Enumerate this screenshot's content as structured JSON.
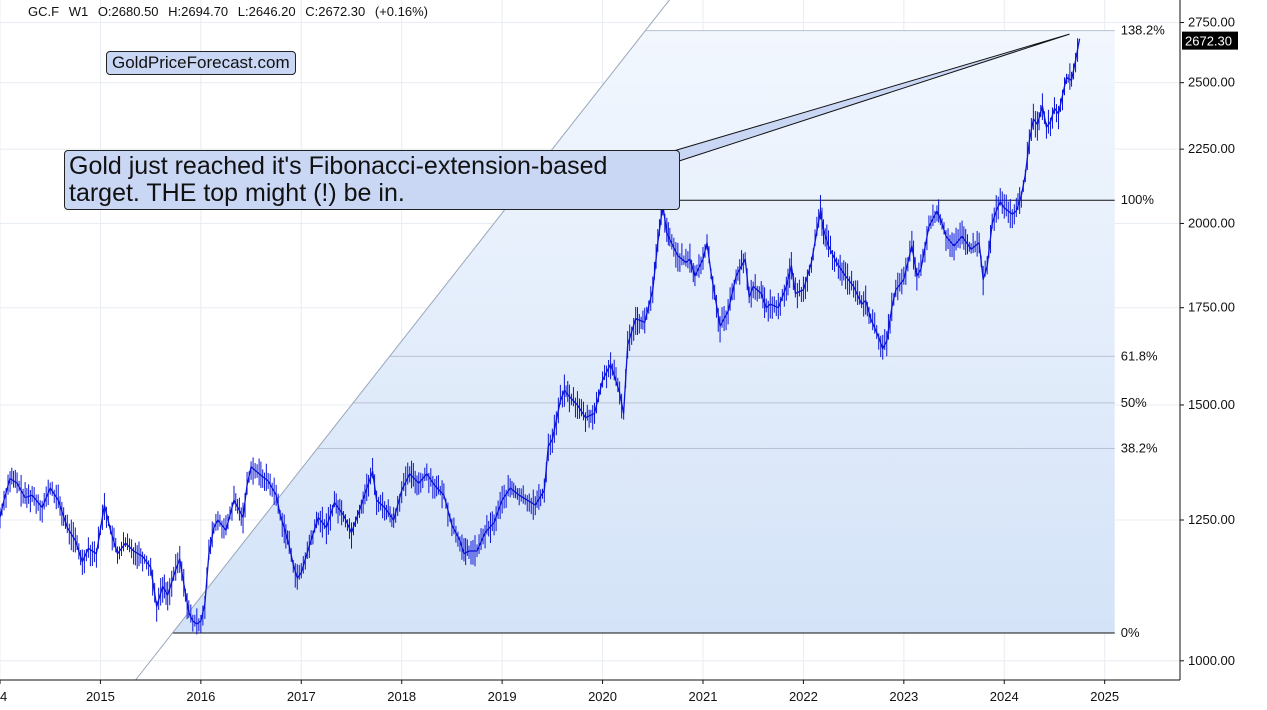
{
  "header": {
    "symbol": "GC.F",
    "interval": "W1",
    "open": "O:2680.50",
    "high": "H:2694.70",
    "low": "L:2646.20",
    "close": "C:2672.30",
    "change": "(+0.16%)"
  },
  "brand": "GoldPriceForecast.com",
  "annotation": "Gold just reached it's Fibonacci-extension-based target. THE top might (!) be in.",
  "colors": {
    "price": "#0a14d8",
    "fill_top": "#f2f7fe",
    "fill_bottom": "#d4e3f8",
    "level_line": "#b8c2d3",
    "grid": "#e8ecf3",
    "price_tag_bg": "#000000",
    "callout_bg": "#c9d7f5"
  },
  "chart_data": {
    "type": "line",
    "title": "",
    "xlabel": "",
    "ylabel": "",
    "scale": "log",
    "ylim": [
      970,
      2850
    ],
    "xlim": [
      2014.0,
      2025.75
    ],
    "x_ticks": [
      "4",
      "2015",
      "2016",
      "2017",
      "2018",
      "2019",
      "2020",
      "2021",
      "2022",
      "2023",
      "2024",
      "2025"
    ],
    "y_ticks": [
      "2750.00",
      "2500.00",
      "2250.00",
      "2000.00",
      "1750.00",
      "1500.00",
      "1250.00",
      "1000.00"
    ],
    "last_price_label": "2672.30",
    "series": [
      {
        "points": [
          [
            2014.0,
            1255
          ],
          [
            2014.04,
            1290
          ],
          [
            2014.1,
            1335
          ],
          [
            2014.17,
            1325
          ],
          [
            2014.25,
            1295
          ],
          [
            2014.32,
            1300
          ],
          [
            2014.42,
            1275
          ],
          [
            2014.5,
            1315
          ],
          [
            2014.58,
            1290
          ],
          [
            2014.67,
            1235
          ],
          [
            2014.75,
            1210
          ],
          [
            2014.82,
            1170
          ],
          [
            2014.88,
            1195
          ],
          [
            2014.96,
            1185
          ],
          [
            2015.04,
            1280
          ],
          [
            2015.1,
            1230
          ],
          [
            2015.17,
            1185
          ],
          [
            2015.25,
            1205
          ],
          [
            2015.33,
            1190
          ],
          [
            2015.42,
            1180
          ],
          [
            2015.5,
            1160
          ],
          [
            2015.56,
            1090
          ],
          [
            2015.62,
            1125
          ],
          [
            2015.67,
            1110
          ],
          [
            2015.75,
            1155
          ],
          [
            2015.79,
            1175
          ],
          [
            2015.83,
            1130
          ],
          [
            2015.88,
            1080
          ],
          [
            2015.92,
            1065
          ],
          [
            2015.96,
            1060
          ],
          [
            2016.0,
            1065
          ],
          [
            2016.04,
            1095
          ],
          [
            2016.08,
            1185
          ],
          [
            2016.13,
            1235
          ],
          [
            2016.17,
            1250
          ],
          [
            2016.25,
            1230
          ],
          [
            2016.33,
            1290
          ],
          [
            2016.42,
            1255
          ],
          [
            2016.46,
            1320
          ],
          [
            2016.5,
            1360
          ],
          [
            2016.58,
            1345
          ],
          [
            2016.67,
            1330
          ],
          [
            2016.75,
            1300
          ],
          [
            2016.79,
            1260
          ],
          [
            2016.83,
            1235
          ],
          [
            2016.88,
            1200
          ],
          [
            2016.92,
            1165
          ],
          [
            2016.96,
            1140
          ],
          [
            2017.0,
            1150
          ],
          [
            2017.08,
            1200
          ],
          [
            2017.17,
            1255
          ],
          [
            2017.25,
            1235
          ],
          [
            2017.33,
            1285
          ],
          [
            2017.42,
            1260
          ],
          [
            2017.5,
            1225
          ],
          [
            2017.58,
            1270
          ],
          [
            2017.67,
            1325
          ],
          [
            2017.71,
            1350
          ],
          [
            2017.75,
            1290
          ],
          [
            2017.83,
            1275
          ],
          [
            2017.92,
            1250
          ],
          [
            2018.0,
            1310
          ],
          [
            2018.08,
            1345
          ],
          [
            2018.17,
            1325
          ],
          [
            2018.25,
            1345
          ],
          [
            2018.33,
            1320
          ],
          [
            2018.42,
            1300
          ],
          [
            2018.46,
            1270
          ],
          [
            2018.5,
            1240
          ],
          [
            2018.58,
            1210
          ],
          [
            2018.62,
            1185
          ],
          [
            2018.67,
            1190
          ],
          [
            2018.75,
            1190
          ],
          [
            2018.83,
            1225
          ],
          [
            2018.92,
            1245
          ],
          [
            2019.0,
            1290
          ],
          [
            2019.08,
            1315
          ],
          [
            2019.17,
            1300
          ],
          [
            2019.25,
            1290
          ],
          [
            2019.33,
            1280
          ],
          [
            2019.42,
            1310
          ],
          [
            2019.46,
            1405
          ],
          [
            2019.5,
            1420
          ],
          [
            2019.58,
            1510
          ],
          [
            2019.62,
            1535
          ],
          [
            2019.67,
            1520
          ],
          [
            2019.75,
            1500
          ],
          [
            2019.83,
            1470
          ],
          [
            2019.92,
            1480
          ],
          [
            2020.0,
            1560
          ],
          [
            2020.08,
            1600
          ],
          [
            2020.17,
            1530
          ],
          [
            2020.21,
            1480
          ],
          [
            2020.25,
            1650
          ],
          [
            2020.33,
            1720
          ],
          [
            2020.42,
            1710
          ],
          [
            2020.5,
            1800
          ],
          [
            2020.55,
            1940
          ],
          [
            2020.6,
            2060
          ],
          [
            2020.64,
            1970
          ],
          [
            2020.67,
            1950
          ],
          [
            2020.75,
            1900
          ],
          [
            2020.83,
            1880
          ],
          [
            2020.87,
            1890
          ],
          [
            2020.92,
            1840
          ],
          [
            2021.0,
            1890
          ],
          [
            2021.04,
            1940
          ],
          [
            2021.08,
            1850
          ],
          [
            2021.17,
            1700
          ],
          [
            2021.25,
            1740
          ],
          [
            2021.33,
            1840
          ],
          [
            2021.42,
            1890
          ],
          [
            2021.46,
            1780
          ],
          [
            2021.5,
            1810
          ],
          [
            2021.58,
            1790
          ],
          [
            2021.63,
            1750
          ],
          [
            2021.67,
            1760
          ],
          [
            2021.75,
            1750
          ],
          [
            2021.83,
            1810
          ],
          [
            2021.88,
            1870
          ],
          [
            2021.92,
            1790
          ],
          [
            2022.0,
            1800
          ],
          [
            2022.08,
            1880
          ],
          [
            2022.17,
            2040
          ],
          [
            2022.2,
            1980
          ],
          [
            2022.25,
            1930
          ],
          [
            2022.33,
            1880
          ],
          [
            2022.42,
            1840
          ],
          [
            2022.5,
            1810
          ],
          [
            2022.58,
            1760
          ],
          [
            2022.62,
            1770
          ],
          [
            2022.67,
            1720
          ],
          [
            2022.75,
            1670
          ],
          [
            2022.79,
            1640
          ],
          [
            2022.83,
            1660
          ],
          [
            2022.88,
            1750
          ],
          [
            2022.92,
            1800
          ],
          [
            2023.0,
            1830
          ],
          [
            2023.08,
            1930
          ],
          [
            2023.13,
            1840
          ],
          [
            2023.17,
            1860
          ],
          [
            2023.25,
            1990
          ],
          [
            2023.33,
            2040
          ],
          [
            2023.38,
            2000
          ],
          [
            2023.42,
            1960
          ],
          [
            2023.5,
            1930
          ],
          [
            2023.58,
            1960
          ],
          [
            2023.67,
            1920
          ],
          [
            2023.75,
            1940
          ],
          [
            2023.79,
            1830
          ],
          [
            2023.83,
            1870
          ],
          [
            2023.88,
            2000
          ],
          [
            2023.92,
            2040
          ],
          [
            2023.96,
            2070
          ],
          [
            2024.0,
            2050
          ],
          [
            2024.08,
            2030
          ],
          [
            2024.12,
            2040
          ],
          [
            2024.17,
            2090
          ],
          [
            2024.21,
            2160
          ],
          [
            2024.25,
            2280
          ],
          [
            2024.29,
            2360
          ],
          [
            2024.33,
            2340
          ],
          [
            2024.38,
            2410
          ],
          [
            2024.42,
            2330
          ],
          [
            2024.46,
            2350
          ],
          [
            2024.5,
            2400
          ],
          [
            2024.54,
            2380
          ],
          [
            2024.58,
            2450
          ],
          [
            2024.62,
            2520
          ],
          [
            2024.67,
            2510
          ],
          [
            2024.71,
            2590
          ],
          [
            2024.75,
            2680
          ]
        ]
      }
    ],
    "fibonacci": {
      "base_low": 1045,
      "high": 2075,
      "levels": [
        {
          "label": "138.2%",
          "value": 2715
        },
        {
          "label": "100%",
          "value": 2075
        },
        {
          "label": "61.8%",
          "value": 1620
        },
        {
          "label": "50%",
          "value": 1505
        },
        {
          "label": "38.2%",
          "value": 1400
        },
        {
          "label": "0%",
          "value": 1045
        }
      ]
    },
    "trendline": {
      "from": [
        2015.35,
        970
      ],
      "to": [
        2020.7,
        2870
      ]
    },
    "callout_target": [
      2024.65,
      2700
    ]
  }
}
